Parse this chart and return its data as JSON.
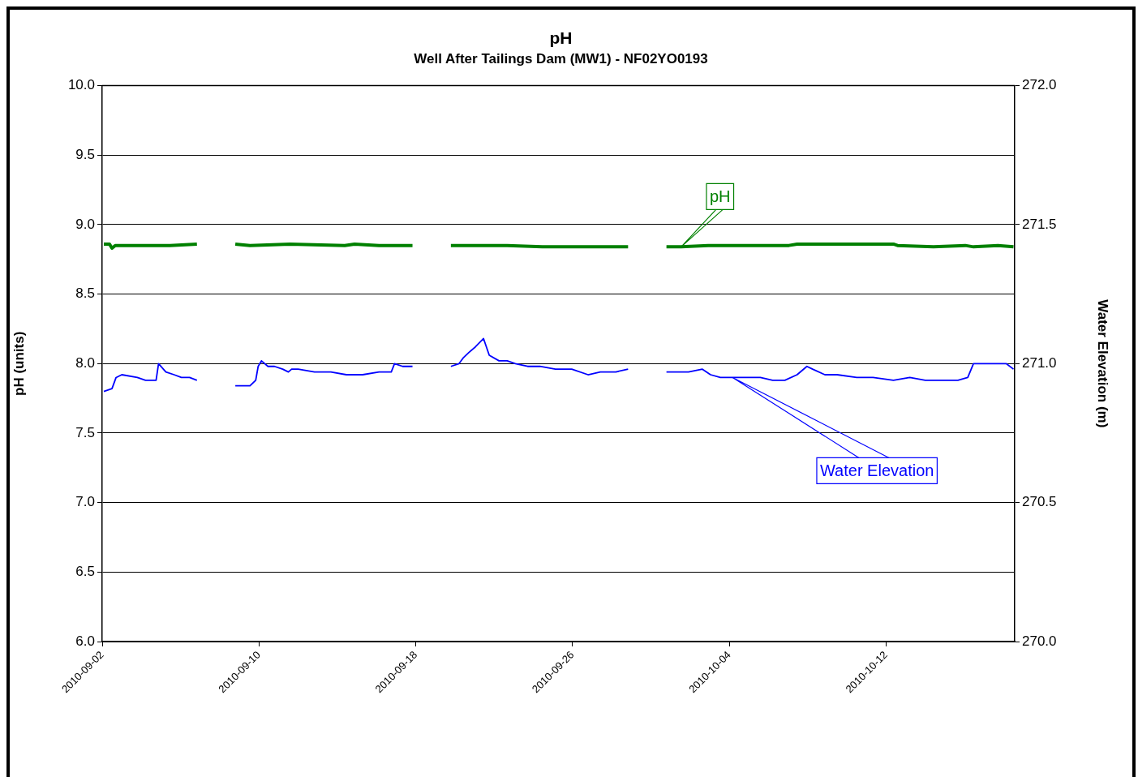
{
  "chart_data": {
    "type": "line",
    "title": "pH",
    "subtitle": "Well After Tailings Dam (MW1) - NF02YO0193",
    "ylabel": "pH (units)",
    "y2label": "Water Elevation (m)",
    "xlim": [
      "2010-09-02",
      "2010-10-18T13:30"
    ],
    "xticks": [
      "2010-09-02",
      "2010-09-10",
      "2010-09-18",
      "2010-09-26",
      "2010-10-04",
      "2010-10-12"
    ],
    "ylim": [
      6,
      10
    ],
    "yticks": [
      {
        "value": 6,
        "label": "6.0"
      },
      {
        "value": 6.5,
        "label": "6.5"
      },
      {
        "value": 7,
        "label": "7.0"
      },
      {
        "value": 7.5,
        "label": "7.5"
      },
      {
        "value": 8,
        "label": "8.0"
      },
      {
        "value": 8.5,
        "label": "8.5"
      },
      {
        "value": 9,
        "label": "9.0"
      },
      {
        "value": 9.5,
        "label": "9.5"
      },
      {
        "value": 10,
        "label": "10.0"
      }
    ],
    "y2lim": [
      270,
      272
    ],
    "y2ticks": [
      {
        "value": 270,
        "label": "270.0"
      },
      {
        "value": 270.5,
        "label": "270.5"
      },
      {
        "value": 271,
        "label": "271.0"
      },
      {
        "value": 271.5,
        "label": "271.5"
      },
      {
        "value": 272,
        "label": "272.0"
      }
    ],
    "grid": "y",
    "legend": false,
    "marker": "none",
    "line_style": "solid",
    "series": [
      {
        "name": "pH",
        "color": "#008000",
        "x": [
          "2010-09-02T02:00",
          "2010-09-02T09:00",
          "2010-09-02T12:00",
          "2010-09-02T16:00",
          "2010-09-03T19:00",
          "2010-09-05T11:00",
          "2010-09-06T20:00",
          "2010-09-07T20:00",
          "2010-09-08T19:00",
          "2010-09-09T13:00",
          "2010-09-11T14:00",
          "2010-09-14T09:00",
          "2010-09-14T21:00",
          "2010-09-16T03:00",
          "2010-09-17T20:00",
          "2010-09-18T20:00",
          "2010-09-19T19:00",
          "2010-09-22T16:00",
          "2010-09-24T11:00",
          "2010-09-28T20:00",
          "2010-09-29T20:00",
          "2010-09-30T19:00",
          "2010-10-01T13:00",
          "2010-10-02T22:00",
          "2010-10-07T01:00",
          "2010-10-07T11:00",
          "2010-10-12T09:00",
          "2010-10-12T14:00",
          "2010-10-14T10:00",
          "2010-10-16T01:00",
          "2010-10-16T11:00",
          "2010-10-17T17:00",
          "2010-10-18T12:00"
        ],
        "values": [
          8.86,
          8.86,
          8.83,
          8.85,
          8.85,
          8.85,
          8.86,
          null,
          8.86,
          8.85,
          8.86,
          8.85,
          8.86,
          8.85,
          8.85,
          null,
          8.85,
          8.85,
          8.84,
          8.84,
          null,
          8.84,
          8.84,
          8.85,
          8.85,
          8.86,
          8.86,
          8.85,
          8.84,
          8.85,
          8.84,
          8.85,
          8.84
        ]
      },
      {
        "name": "Water Elevation",
        "color": "#0000ff",
        "axis": "y2",
        "x": [
          "2010-09-02T02:00",
          "2010-09-02T12:00",
          "2010-09-02T17:00",
          "2010-09-03T00:00",
          "2010-09-03T19:00",
          "2010-09-04T05:00",
          "2010-09-04T18:00",
          "2010-09-04T21:00",
          "2010-09-05T06:00",
          "2010-09-05T16:00",
          "2010-09-06T01:00",
          "2010-09-06T11:00",
          "2010-09-06T20:00",
          "2010-09-07T20:00",
          "2010-09-08T19:00",
          "2010-09-09T03:00",
          "2010-09-09T13:00",
          "2010-09-09T20:00",
          "2010-09-09T23:00",
          "2010-09-10T03:00",
          "2010-09-10T11:00",
          "2010-09-10T19:00",
          "2010-09-11T05:00",
          "2010-09-11T12:00",
          "2010-09-11T16:00",
          "2010-09-12T00:00",
          "2010-09-12T20:00",
          "2010-09-13T16:00",
          "2010-09-14T11:00",
          "2010-09-15T07:00",
          "2010-09-16T03:00",
          "2010-09-16T18:00",
          "2010-09-16T22:00",
          "2010-09-17T08:00",
          "2010-09-17T20:00",
          "2010-09-18T20:00",
          "2010-09-19T19:00",
          "2010-09-20T05:00",
          "2010-09-20T10:00",
          "2010-09-20T17:00",
          "2010-09-21T01:00",
          "2010-09-21T11:00",
          "2010-09-21T18:00",
          "2010-09-22T06:00",
          "2010-09-22T16:00",
          "2010-09-23T02:00",
          "2010-09-23T17:00",
          "2010-09-24T08:00",
          "2010-09-25T03:00",
          "2010-09-25T23:00",
          "2010-09-26T19:00",
          "2010-09-27T10:00",
          "2010-09-28T05:00",
          "2010-09-28T20:00",
          "2010-09-29T20:00",
          "2010-09-30T19:00",
          "2010-10-01T07:00",
          "2010-10-01T22:00",
          "2010-10-02T15:00",
          "2010-10-03T01:00",
          "2010-10-03T13:00",
          "2010-10-04T04:00",
          "2010-10-04T19:00",
          "2010-10-05T14:00",
          "2010-10-06T05:00",
          "2010-10-06T20:00",
          "2010-10-07T11:00",
          "2010-10-07T23:00",
          "2010-10-08T06:00",
          "2010-10-08T21:00",
          "2010-10-09T12:00",
          "2010-10-10T12:00",
          "2010-10-11T08:00",
          "2010-10-12T09:00",
          "2010-10-13T05:00",
          "2010-10-14T00:00",
          "2010-10-14T20:00",
          "2010-10-15T16:00",
          "2010-10-16T04:00",
          "2010-10-16T11:00",
          "2010-10-16T23:00",
          "2010-10-17T07:00",
          "2010-10-17T15:00",
          "2010-10-18T03:00",
          "2010-10-18T12:00"
        ],
        "values": [
          270.9,
          270.91,
          270.95,
          270.96,
          270.95,
          270.94,
          270.94,
          271.0,
          270.97,
          270.96,
          270.95,
          270.95,
          270.94,
          null,
          270.92,
          270.92,
          270.92,
          270.94,
          270.99,
          271.01,
          270.99,
          270.99,
          270.98,
          270.97,
          270.98,
          270.98,
          270.97,
          270.97,
          270.96,
          270.96,
          270.97,
          270.97,
          271.0,
          270.99,
          270.99,
          null,
          270.99,
          271.0,
          271.02,
          271.04,
          271.06,
          271.09,
          271.03,
          271.01,
          271.01,
          271.0,
          270.99,
          270.99,
          270.98,
          270.98,
          270.96,
          270.97,
          270.97,
          270.98,
          null,
          270.97,
          270.97,
          270.97,
          270.98,
          270.96,
          270.95,
          270.95,
          270.95,
          270.95,
          270.94,
          270.94,
          270.96,
          270.99,
          270.98,
          270.96,
          270.96,
          270.95,
          270.95,
          270.94,
          270.95,
          270.94,
          270.94,
          270.94,
          270.95,
          271.0,
          271.0,
          271.0,
          271.0,
          271.0,
          270.98
        ]
      }
    ]
  }
}
